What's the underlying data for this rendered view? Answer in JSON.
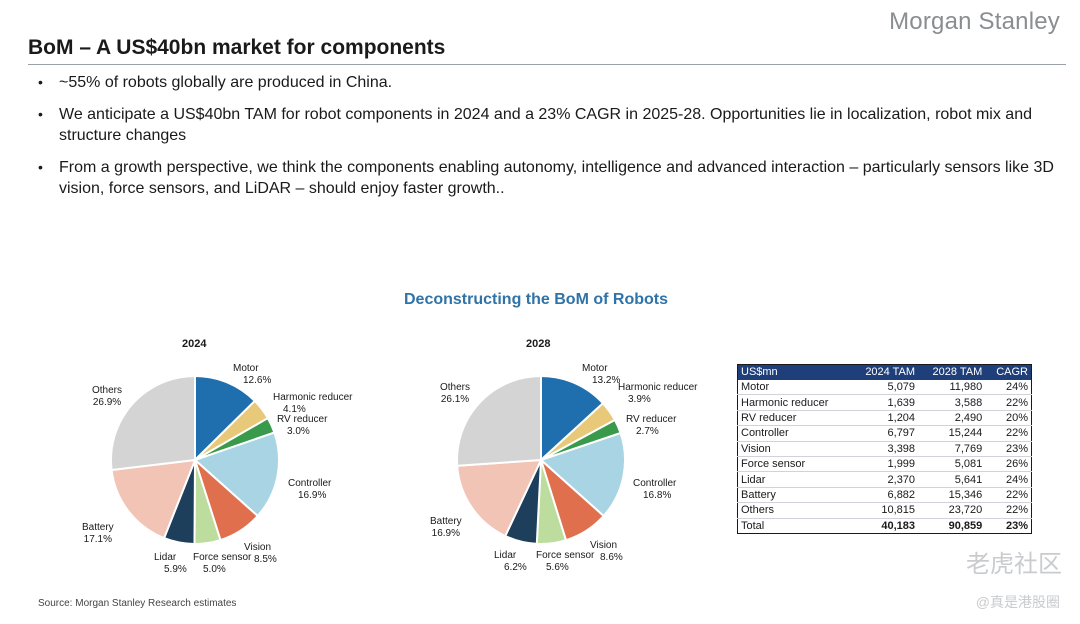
{
  "header": {
    "logo": "Morgan Stanley",
    "title": "BoM – A US$40bn market for components"
  },
  "bullets": [
    "~55% of robots globally are produced in China.",
    "We anticipate a US$40bn TAM for robot components in 2024 and a 23% CAGR in 2025-28. Opportunities lie in localization, robot mix and structure changes",
    "From a growth perspective, we think the components enabling autonomy, intelligence and advanced interaction – particularly sensors like 3D vision, force sensors, and LiDAR – should enjoy faster growth.."
  ],
  "chart_data": [
    {
      "type": "pie",
      "title": "2024",
      "slices": [
        {
          "label": "Motor",
          "value": 12.6,
          "display": "12.6%"
        },
        {
          "label": "Harmonic reducer",
          "value": 4.1,
          "display": "4.1%"
        },
        {
          "label": "RV reducer",
          "value": 3.0,
          "display": "3.0%"
        },
        {
          "label": "Controller",
          "value": 16.9,
          "display": "16.9%"
        },
        {
          "label": "Vision",
          "value": 8.5,
          "display": "8.5%"
        },
        {
          "label": "Force sensor",
          "value": 5.0,
          "display": "5.0%"
        },
        {
          "label": "Lidar",
          "value": 5.9,
          "display": "5.9%"
        },
        {
          "label": "Battery",
          "value": 17.1,
          "display": "17.1%"
        },
        {
          "label": "Others",
          "value": 26.9,
          "display": "26.9%"
        }
      ]
    },
    {
      "type": "pie",
      "title": "2028",
      "slices": [
        {
          "label": "Motor",
          "value": 13.2,
          "display": "13.2%"
        },
        {
          "label": "Harmonic reducer",
          "value": 3.9,
          "display": "3.9%"
        },
        {
          "label": "RV reducer",
          "value": 2.7,
          "display": "2.7%"
        },
        {
          "label": "Controller",
          "value": 16.8,
          "display": "16.8%"
        },
        {
          "label": "Vision",
          "value": 8.6,
          "display": "8.6%"
        },
        {
          "label": "Force sensor",
          "value": 5.6,
          "display": "5.6%"
        },
        {
          "label": "Lidar",
          "value": 6.2,
          "display": "6.2%"
        },
        {
          "label": "Battery",
          "value": 16.9,
          "display": "16.9%"
        },
        {
          "label": "Others",
          "value": 26.1,
          "display": "26.1%"
        }
      ]
    },
    {
      "type": "table",
      "columns": [
        "US$mn",
        "2024 TAM",
        "2028 TAM",
        "CAGR"
      ],
      "rows": [
        [
          "Motor",
          "5,079",
          "11,980",
          "24%"
        ],
        [
          "Harmonic reducer",
          "1,639",
          "3,588",
          "22%"
        ],
        [
          "RV reducer",
          "1,204",
          "2,490",
          "20%"
        ],
        [
          "Controller",
          "6,797",
          "15,244",
          "22%"
        ],
        [
          "Vision",
          "3,398",
          "7,769",
          "23%"
        ],
        [
          "Force sensor",
          "1,999",
          "5,081",
          "26%"
        ],
        [
          "Lidar",
          "2,370",
          "5,641",
          "24%"
        ],
        [
          "Battery",
          "6,882",
          "15,346",
          "22%"
        ],
        [
          "Others",
          "10,815",
          "23,720",
          "22%"
        ]
      ],
      "total": [
        "Total",
        "40,183",
        "90,859",
        "23%"
      ]
    }
  ],
  "chart_title": "Deconstructing the BoM of Robots",
  "slice_colors": [
    "#1f6fae",
    "#e8c879",
    "#3a9a4c",
    "#a8d4e4",
    "#e0704d",
    "#bcdd9e",
    "#1e3f5c",
    "#f2c4b6",
    "#d4d4d4"
  ],
  "source": "Source: Morgan Stanley Research estimates",
  "watermark": "老虎社区",
  "watermark_sub": "@真是港股圈"
}
